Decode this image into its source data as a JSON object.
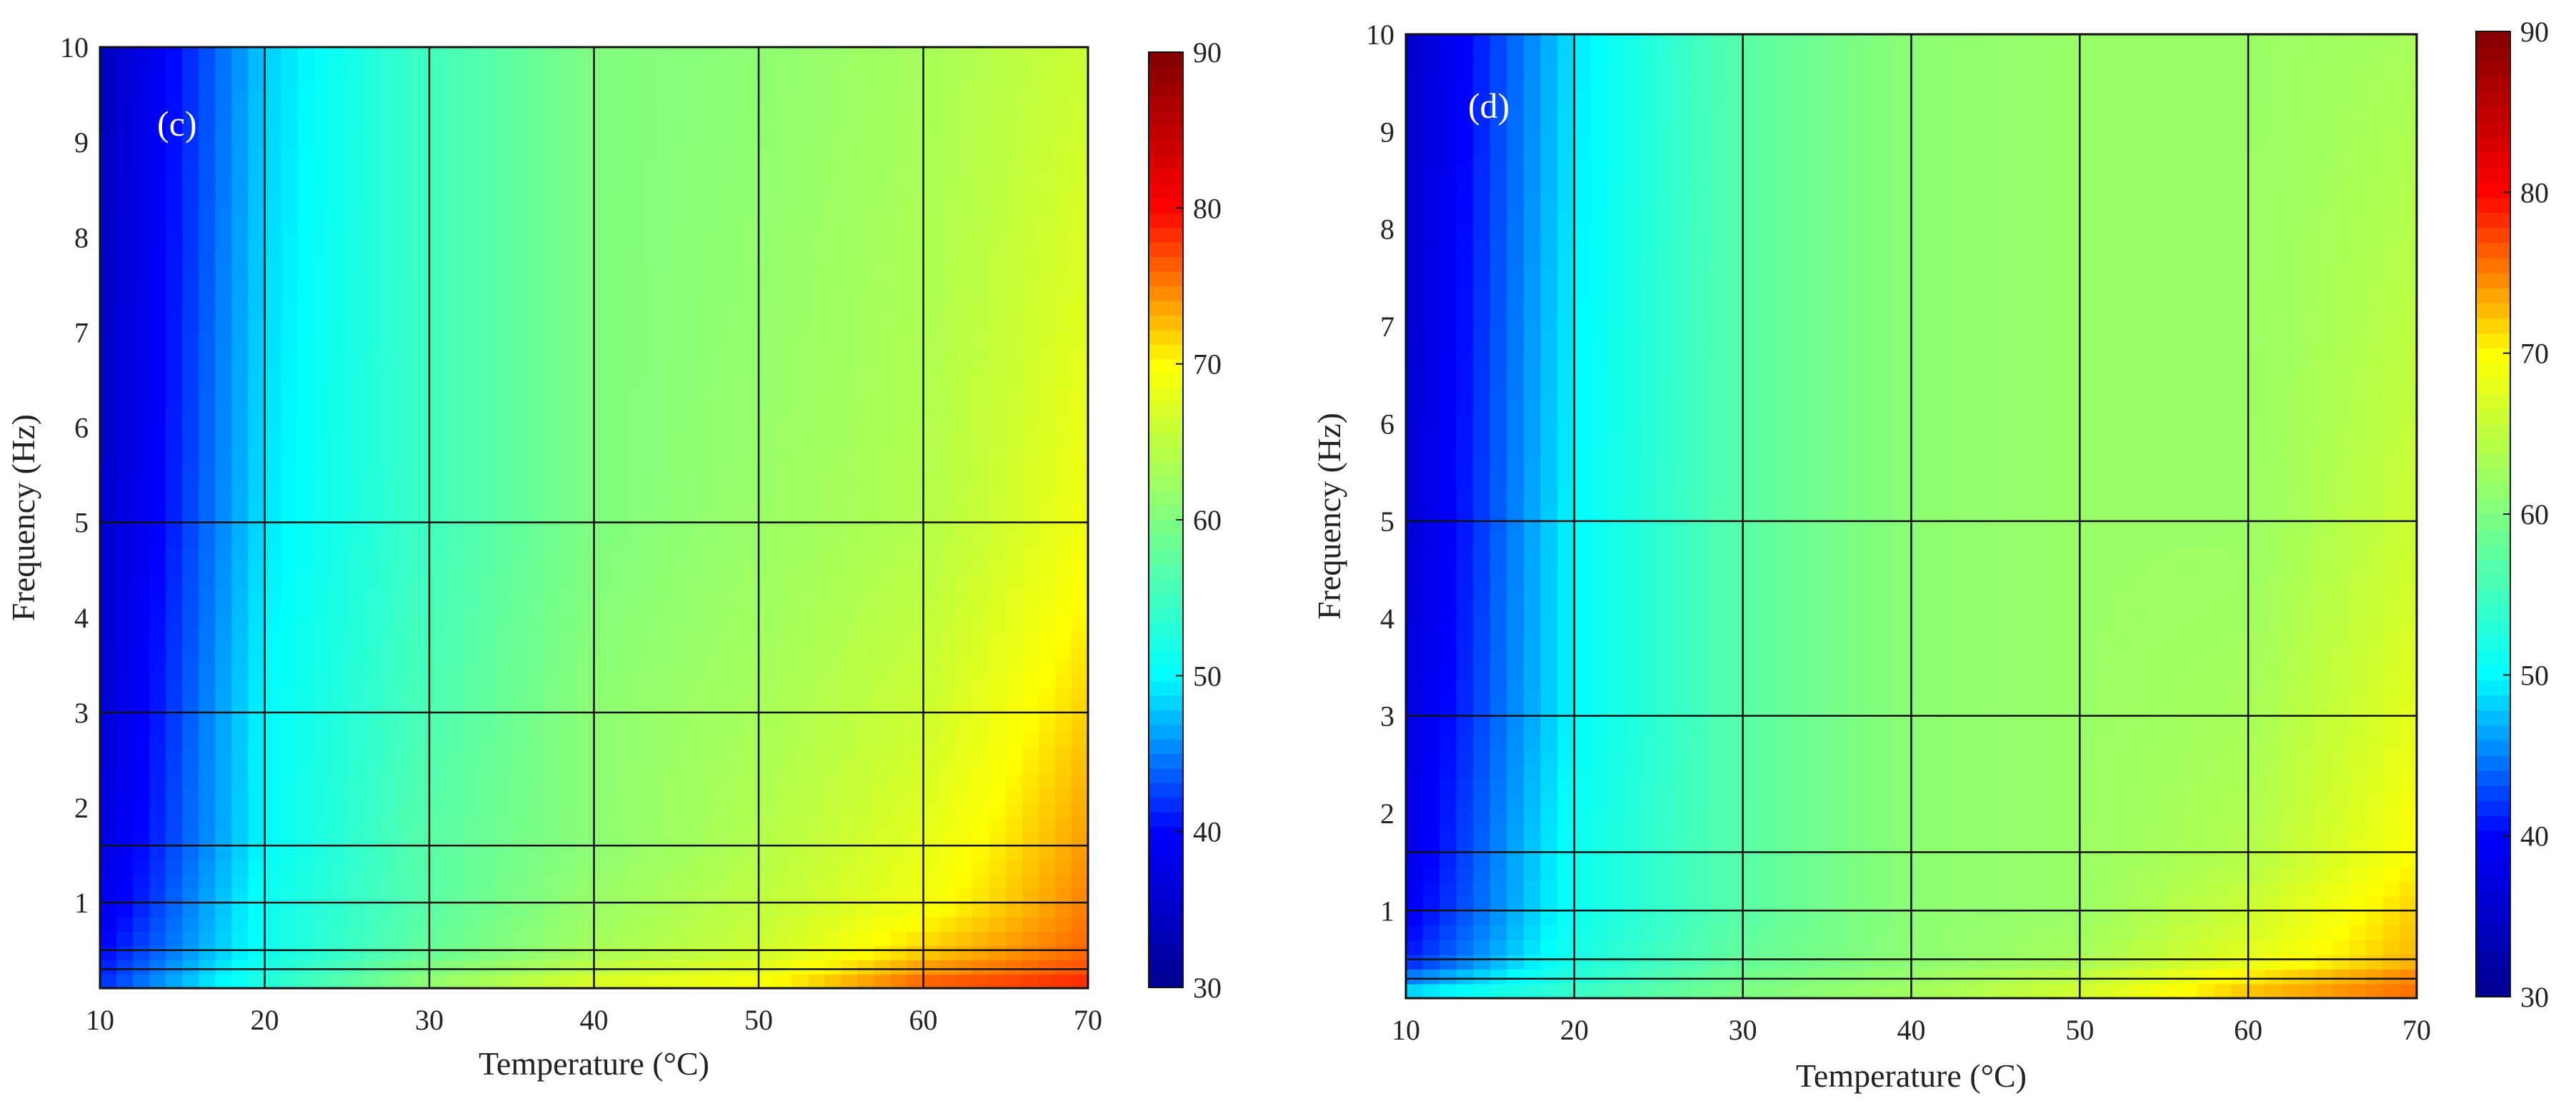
{
  "figure": {
    "background": "#ffffff",
    "grid_color": "#111111"
  },
  "chart_data": [
    {
      "type": "heatmap",
      "panel_label": "(c)",
      "title": "",
      "xlabel": "Temperature (°C)",
      "ylabel": "Frequency (Hz)",
      "xlim": [
        10,
        70
      ],
      "ylim": [
        0.1,
        10
      ],
      "x_tick_labels": [
        "10",
        "20",
        "30",
        "40",
        "50",
        "60",
        "70"
      ],
      "y_tick_labels": [
        "1",
        "2",
        "3",
        "4",
        "5",
        "6",
        "7",
        "8",
        "9",
        "10"
      ],
      "grid_temperatures": [
        20,
        30,
        40,
        50,
        60
      ],
      "grid_frequencies": [
        0.3,
        0.5,
        1,
        1.6,
        3,
        5
      ],
      "colorbar": {
        "range": [
          30,
          90
        ],
        "tick_labels": [
          "30",
          "40",
          "50",
          "60",
          "70",
          "80",
          "90"
        ],
        "colormap": [
          "#00008f",
          "#0000ff",
          "#00ffff",
          "#80ff80",
          "#ffff00",
          "#ff0000",
          "#800000"
        ]
      },
      "values": {
        "temperatures": [
          10,
          20,
          30,
          40,
          50,
          60,
          70
        ],
        "frequencies": [
          0.1,
          0.3,
          0.5,
          1,
          1.6,
          3,
          5,
          10
        ],
        "z": [
          [
            42,
            53,
            62,
            68,
            70,
            77,
            79
          ],
          [
            41,
            52,
            60,
            65,
            68,
            74,
            77
          ],
          [
            40,
            51,
            58,
            63,
            66,
            72,
            76
          ],
          [
            38,
            51,
            57,
            62,
            65,
            69,
            75
          ],
          [
            37,
            50,
            57,
            61,
            64,
            68,
            74
          ],
          [
            36,
            50,
            56,
            61,
            63,
            66,
            72
          ],
          [
            35,
            49,
            55,
            60,
            62,
            64,
            69
          ],
          [
            34,
            48,
            55,
            60,
            61,
            63,
            66
          ]
        ]
      }
    },
    {
      "type": "heatmap",
      "panel_label": "(d)",
      "title": "",
      "xlabel": "Temperature (°C)",
      "ylabel": "Frequency (Hz)",
      "xlim": [
        10,
        70
      ],
      "ylim": [
        0.1,
        10
      ],
      "x_tick_labels": [
        "10",
        "20",
        "30",
        "40",
        "50",
        "60",
        "70"
      ],
      "y_tick_labels": [
        "1",
        "2",
        "3",
        "4",
        "5",
        "6",
        "7",
        "8",
        "9",
        "10"
      ],
      "grid_temperatures": [
        20,
        30,
        40,
        50,
        60
      ],
      "grid_frequencies": [
        0.3,
        0.5,
        1,
        1.6,
        3,
        5
      ],
      "colorbar": {
        "range": [
          30,
          90
        ],
        "tick_labels": [
          "30",
          "40",
          "50",
          "60",
          "70",
          "80",
          "90"
        ],
        "colormap": [
          "#00008f",
          "#0000ff",
          "#00ffff",
          "#80ff80",
          "#ffff00",
          "#ff0000",
          "#800000"
        ]
      },
      "values": {
        "temperatures": [
          10,
          20,
          30,
          40,
          50,
          60,
          70
        ],
        "frequencies": [
          0.1,
          0.3,
          0.5,
          1,
          1.6,
          3,
          5,
          10
        ],
        "z": [
          [
            50,
            55,
            60,
            63,
            67,
            73,
            76
          ],
          [
            45,
            53,
            59,
            62,
            65,
            71,
            75
          ],
          [
            41,
            52,
            58,
            61,
            63,
            68,
            73
          ],
          [
            39,
            51,
            57,
            61,
            62,
            66,
            72
          ],
          [
            38,
            51,
            57,
            61,
            62,
            64,
            70
          ],
          [
            37,
            50,
            57,
            61,
            62,
            63,
            68
          ],
          [
            36,
            50,
            57,
            61,
            62,
            62,
            66
          ],
          [
            35,
            49,
            57,
            61,
            62,
            62,
            63
          ]
        ]
      }
    }
  ]
}
